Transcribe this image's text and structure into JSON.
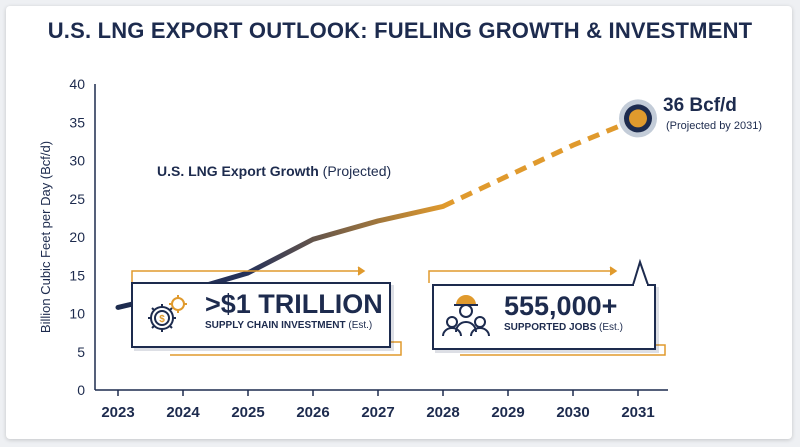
{
  "title": "U.S. LNG EXPORT OUTLOOK: FUELING GROWTH & INVESTMENT",
  "chart_data": {
    "type": "line",
    "ylabel": "Billion Cubic Feet per Day (Bcf/d)",
    "ylim": [
      0,
      40
    ],
    "yticks": [
      "0",
      "5",
      "10",
      "15",
      "20",
      "25",
      "30",
      "35",
      "40"
    ],
    "categories": [
      "2023",
      "2024",
      "2025",
      "2026",
      "2027",
      "2028",
      "2029",
      "2030",
      "2031"
    ],
    "series": [
      {
        "name": "U.S. LNG Export Growth",
        "x": [
          "2023",
          "2024",
          "2025",
          "2026",
          "2027",
          "2028",
          "2029",
          "2030",
          "2031"
        ],
        "values": [
          10.8,
          12.8,
          15.3,
          19.7,
          22.1,
          24.0,
          28.0,
          32.0,
          35.5
        ]
      }
    ],
    "series_label_bold": "U.S. LNG Export Growth",
    "series_label_rest": " (Projected)",
    "annotation": {
      "value": "36 Bcf/d",
      "sub": "(Projected by 2031)"
    },
    "projected_from": "2028",
    "colors": {
      "navy": "#1d2b4e",
      "gold": "#e09a2d"
    }
  },
  "callouts": [
    {
      "value": ">$1 TRILLION",
      "label_bold": "SUPPLY CHAIN INVESTMENT",
      "label_rest": " (Est.)",
      "icon": "gears-dollar-icon"
    },
    {
      "value": "555,000+",
      "label_bold": "SUPPORTED JOBS",
      "label_rest": " (Est.)",
      "icon": "workers-icon"
    }
  ]
}
